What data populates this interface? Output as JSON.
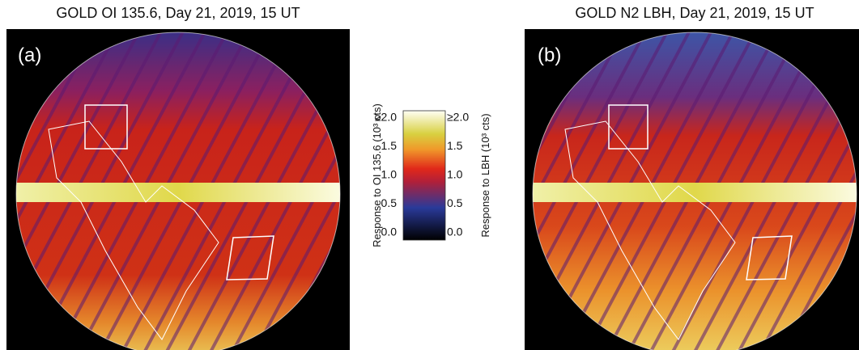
{
  "panels": [
    {
      "title": "GOLD OI 135.6, Day 21, 2019, 15 UT",
      "label": "(a)"
    },
    {
      "title": "GOLD N2 LBH, Day 21, 2019, 15 UT",
      "label": "(b)"
    }
  ],
  "colorbar": {
    "left_label": "Response to OI 135.6 (10³ cts)",
    "right_label": "Response to LBH (10³ cts)",
    "ticks": [
      "≥2.0",
      "1.5",
      "1.0",
      "0.5",
      "0.0"
    ]
  }
}
